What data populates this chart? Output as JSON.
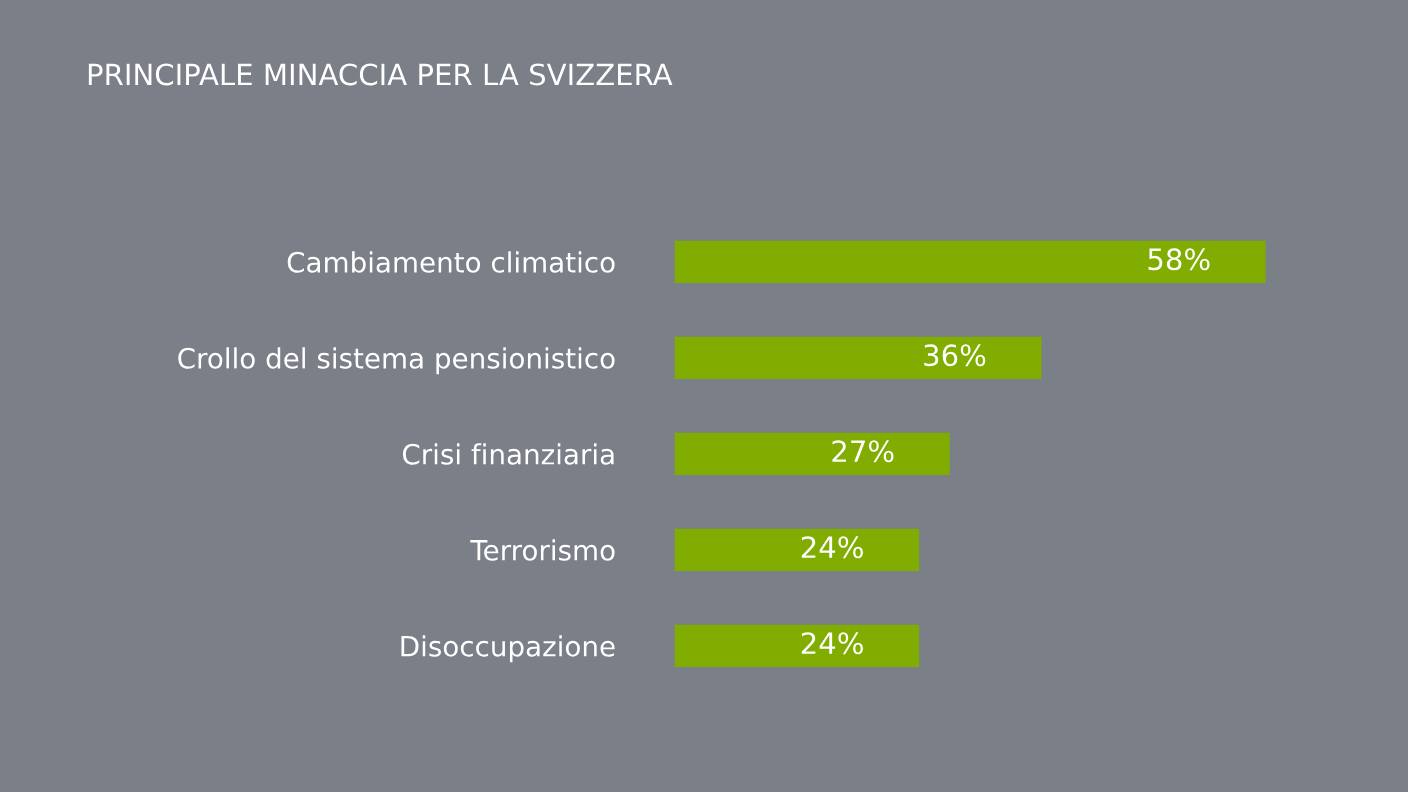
{
  "chart_data": {
    "type": "bar",
    "orientation": "horizontal",
    "title": "PRINCIPALE MINACCIA PER LA SVIZZERA",
    "categories": [
      "Cambiamento climatico",
      "Crollo del sistema pensionistico",
      "Crisi finanziaria",
      "Terrorismo",
      "Disoccupazione"
    ],
    "values": [
      58,
      36,
      27,
      24,
      24
    ],
    "value_labels": [
      "58%",
      "36%",
      "27%",
      "24%",
      "24%"
    ],
    "color": "#80ad00",
    "grid": false,
    "legend": false
  }
}
